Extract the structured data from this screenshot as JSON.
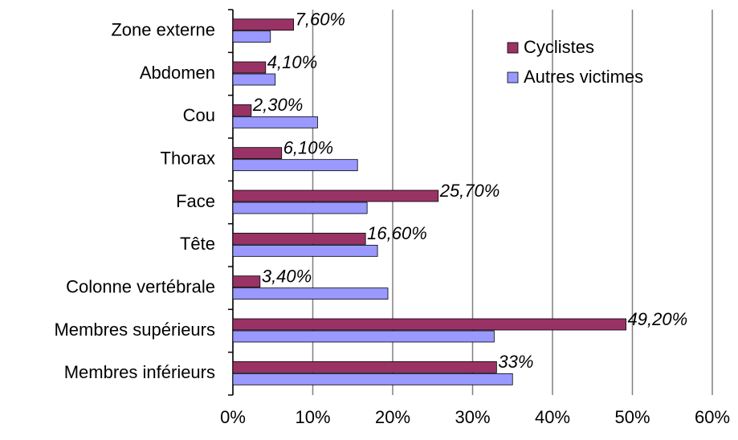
{
  "chart_data": {
    "type": "bar",
    "orientation": "horizontal",
    "categories": [
      "Zone externe",
      "Abdomen",
      "Cou",
      "Thorax",
      "Face",
      "Tête",
      "Colonne vertébrale",
      "Membres supérieurs",
      "Membres inférieurs"
    ],
    "series": [
      {
        "name": "Cyclistes",
        "color": "#993366",
        "values": [
          7.6,
          4.1,
          2.3,
          6.1,
          25.7,
          16.6,
          3.4,
          49.2,
          33
        ],
        "value_labels": [
          "7,60%",
          "4,10%",
          "2,30%",
          "6,10%",
          "25,70%",
          "16,60%",
          "3,40%",
          "49,20%",
          "33%"
        ]
      },
      {
        "name": "Autres victimes",
        "color": "#9999ff",
        "values": [
          4.7,
          5.3,
          10.6,
          15.6,
          16.8,
          18.1,
          19.4,
          32.7,
          35
        ]
      }
    ],
    "xlim": [
      0,
      60
    ],
    "xticks": [
      {
        "value": 0,
        "label": "0%"
      },
      {
        "value": 10,
        "label": "10%"
      },
      {
        "value": 20,
        "label": "20%"
      },
      {
        "value": 30,
        "label": "30%"
      },
      {
        "value": 40,
        "label": "40%"
      },
      {
        "value": 50,
        "label": "50%"
      },
      {
        "value": 60,
        "label": "60%"
      }
    ],
    "grid": true,
    "legend": "upper right"
  }
}
